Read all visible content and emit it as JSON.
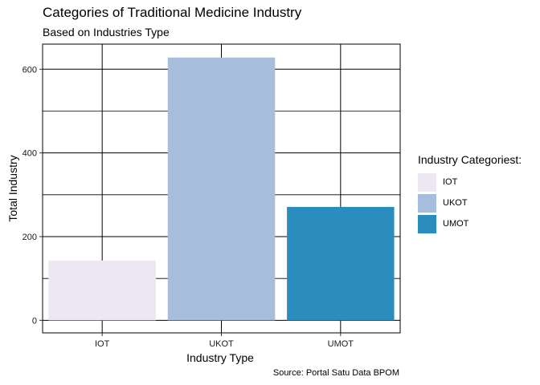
{
  "chart_data": {
    "type": "bar",
    "title": "Categories of Traditional Medicine Industry",
    "subtitle": "Based on Industries Type",
    "caption": "Source: Portal Satu Data BPOM",
    "xlabel": "Industry Type",
    "ylabel": "Total Industry",
    "categories": [
      "IOT",
      "UKOT",
      "UMOT"
    ],
    "values": [
      143,
      628,
      271
    ],
    "colors": [
      "#ece7f2",
      "#a6bddb",
      "#2b8cbe"
    ],
    "ylim": [
      -30,
      660
    ],
    "yticks": [
      0,
      200,
      400,
      600
    ],
    "yminor": [
      100,
      300,
      500
    ],
    "grid": true,
    "legend": {
      "title": "Industry Categoriest:",
      "position": "right",
      "items": [
        {
          "label": "IOT",
          "color": "#ece7f2"
        },
        {
          "label": "UKOT",
          "color": "#a6bddb"
        },
        {
          "label": "UMOT",
          "color": "#2b8cbe"
        }
      ]
    }
  }
}
